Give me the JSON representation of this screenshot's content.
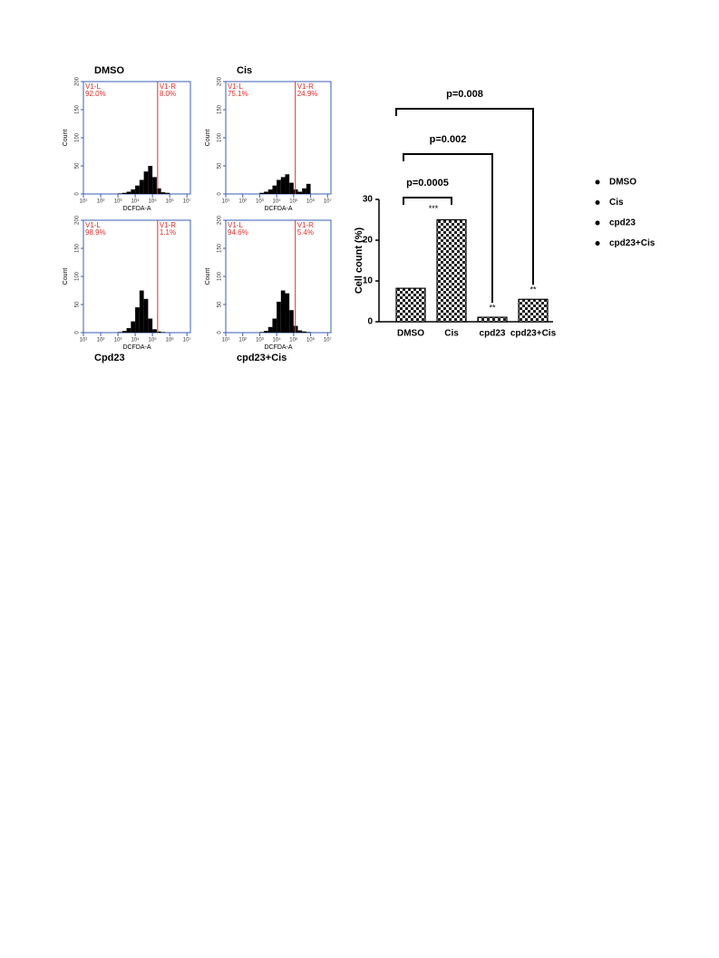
{
  "chart_data": [
    {
      "type": "histogram",
      "title": "DMSO",
      "ylabel": "Count",
      "xlabel": "DCFDA-A",
      "log_x": true,
      "bins": [
        3.0,
        3.25,
        3.5,
        3.75,
        4.0,
        4.25,
        4.5,
        4.75,
        5.0,
        5.25,
        5.5,
        5.75,
        6.0
      ],
      "counts": [
        1,
        2,
        4,
        8,
        15,
        25,
        40,
        50,
        30,
        10,
        3,
        2
      ],
      "color": "#000000",
      "gate": 5.3,
      "gate_color": "#e0302a",
      "categories": [
        "V1-L",
        "V1-R"
      ],
      "values": [
        92.0,
        8.0
      ],
      "value_labels": [
        "92.0%",
        "8.0%"
      ],
      "xlim": [
        1,
        7.2
      ],
      "xticks": [
        {
          "value": 1,
          "label": "10¹"
        },
        {
          "value": 2,
          "label": "10²"
        },
        {
          "value": 3,
          "label": "10³"
        },
        {
          "value": 4,
          "label": "10⁴"
        },
        {
          "value": 5,
          "label": "10⁵"
        },
        {
          "value": 6,
          "label": "10⁶"
        },
        {
          "value": 7,
          "label": "10⁷"
        }
      ],
      "ylim": [
        0,
        200
      ],
      "yticks": [
        0,
        50,
        100,
        150,
        200
      ],
      "frame_color": "#3a5fb5"
    },
    {
      "type": "histogram",
      "title": "Cis",
      "ylabel": "Count",
      "xlabel": "DCFDA-A",
      "log_x": true,
      "bins": [
        3.0,
        3.25,
        3.5,
        3.75,
        4.0,
        4.25,
        4.5,
        4.75,
        5.0,
        5.25,
        5.5,
        5.75,
        6.0
      ],
      "counts": [
        2,
        4,
        8,
        15,
        25,
        30,
        35,
        20,
        8,
        4,
        10,
        18
      ],
      "color": "#000000",
      "gate": 5.1,
      "gate_color": "#e0302a",
      "categories": [
        "V1-L",
        "V1-R"
      ],
      "values": [
        75.1,
        24.9
      ],
      "value_labels": [
        "75.1%",
        "24.9%"
      ],
      "xlim": [
        1,
        7.2
      ],
      "xticks": [
        {
          "value": 1,
          "label": "10¹"
        },
        {
          "value": 2,
          "label": "10²"
        },
        {
          "value": 3,
          "label": "10³"
        },
        {
          "value": 4,
          "label": "10⁴"
        },
        {
          "value": 5,
          "label": "10⁵"
        },
        {
          "value": 6,
          "label": "10⁶"
        },
        {
          "value": 7,
          "label": "10⁷"
        }
      ],
      "ylim": [
        0,
        200
      ],
      "yticks": [
        0,
        50,
        100,
        150,
        200
      ],
      "frame_color": "#3a5fb5"
    },
    {
      "type": "histogram",
      "title": "Cpd23",
      "ylabel": "Count",
      "xlabel": "DCFDA-A",
      "log_x": true,
      "bins": [
        3.0,
        3.25,
        3.5,
        3.75,
        4.0,
        4.25,
        4.5,
        4.75,
        5.0,
        5.25,
        5.5,
        5.75,
        6.0
      ],
      "counts": [
        1,
        3,
        8,
        20,
        45,
        75,
        60,
        25,
        6,
        2,
        1,
        0
      ],
      "color": "#000000",
      "gate": 5.3,
      "gate_color": "#e0302a",
      "categories": [
        "V1-L",
        "V1-R"
      ],
      "values": [
        98.9,
        1.1
      ],
      "value_labels": [
        "98.9%",
        "1.1%"
      ],
      "xlim": [
        1,
        7.2
      ],
      "xticks": [
        {
          "value": 1,
          "label": "10¹"
        },
        {
          "value": 2,
          "label": "10²"
        },
        {
          "value": 3,
          "label": "10³"
        },
        {
          "value": 4,
          "label": "10⁴"
        },
        {
          "value": 5,
          "label": "10⁵"
        },
        {
          "value": 6,
          "label": "10⁶"
        },
        {
          "value": 7,
          "label": "10⁷"
        }
      ],
      "ylim": [
        0,
        200
      ],
      "yticks": [
        0,
        50,
        100,
        150,
        200
      ],
      "frame_color": "#3a5fb5"
    },
    {
      "type": "histogram",
      "title": "cpd23+Cis",
      "ylabel": "Count",
      "xlabel": "DCFDA-A",
      "log_x": true,
      "bins": [
        3.0,
        3.25,
        3.5,
        3.75,
        4.0,
        4.25,
        4.5,
        4.75,
        5.0,
        5.25,
        5.5,
        5.75,
        6.0
      ],
      "counts": [
        1,
        3,
        10,
        25,
        55,
        75,
        70,
        40,
        12,
        4,
        2,
        1
      ],
      "color": "#000000",
      "gate": 5.1,
      "gate_color": "#e0302a",
      "categories": [
        "V1-L",
        "V1-R"
      ],
      "values": [
        94.6,
        5.4
      ],
      "value_labels": [
        "94.6%",
        "5.4%"
      ],
      "xlim": [
        1,
        7.2
      ],
      "xticks": [
        {
          "value": 1,
          "label": "10¹"
        },
        {
          "value": 2,
          "label": "10²"
        },
        {
          "value": 3,
          "label": "10³"
        },
        {
          "value": 4,
          "label": "10⁴"
        },
        {
          "value": 5,
          "label": "10⁵"
        },
        {
          "value": 6,
          "label": "10⁶"
        },
        {
          "value": 7,
          "label": "10⁷"
        }
      ],
      "ylim": [
        0,
        200
      ],
      "yticks": [
        0,
        50,
        100,
        150,
        200
      ],
      "frame_color": "#3a5fb5"
    },
    {
      "type": "bar",
      "ylabel": "Cell count (%)",
      "categories": [
        "DMSO",
        "Cis",
        "cpd23",
        "cpd23+Cis"
      ],
      "values": [
        8.2,
        25,
        1.1,
        5.5
      ],
      "color": "#000000",
      "ylim": [
        0,
        30
      ],
      "yticks": [
        0,
        10,
        20,
        30
      ],
      "significance": [
        null,
        "***",
        "**",
        "**"
      ],
      "comparisons": [
        {
          "label": "p=0.0005",
          "from": 0,
          "to": 1
        },
        {
          "label": "p=0.002",
          "from": 0,
          "to": 2
        },
        {
          "label": "p=0.008",
          "from": 0,
          "to": 3
        }
      ],
      "legend": [
        "DMSO",
        "Cis",
        "cpd23",
        "cpd23+Cis"
      ],
      "legend_position": "right"
    }
  ]
}
